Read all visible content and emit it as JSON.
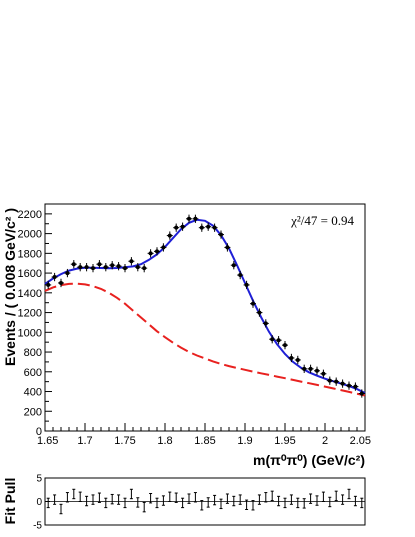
{
  "chart_data": [
    {
      "type": "scatter",
      "title": "",
      "xlabel": "m(π⁰π⁰) (GeV/c²)",
      "ylabel": "Events / ( 0.008 GeV/c² )",
      "xlim": [
        1.65,
        2.05
      ],
      "ylim": [
        0,
        2300
      ],
      "x_ticks": [
        1.65,
        1.7,
        1.75,
        1.8,
        1.85,
        1.9,
        1.95,
        2.0,
        2.05
      ],
      "x_tick_labels": [
        "1.65",
        "1.7",
        "1.75",
        "1.8",
        "1.85",
        "1.9",
        "1.95",
        "2",
        "2.05"
      ],
      "y_ticks": [
        0,
        200,
        400,
        600,
        800,
        1000,
        1200,
        1400,
        1600,
        1800,
        2000,
        2200
      ],
      "y_tick_labels": [
        "0",
        "200",
        "400",
        "600",
        "800",
        "1000",
        "1200",
        "1400",
        "1600",
        "1800",
        "2000",
        "2200"
      ],
      "annotation": "χ²/47 = 0.94",
      "grid": false,
      "series": [
        {
          "name": "",
          "kind": "data-points-with-errors",
          "color": "#000000",
          "x": [
            1.654,
            1.662,
            1.67,
            1.678,
            1.686,
            1.694,
            1.702,
            1.71,
            1.718,
            1.726,
            1.734,
            1.742,
            1.75,
            1.758,
            1.766,
            1.774,
            1.782,
            1.79,
            1.798,
            1.806,
            1.814,
            1.822,
            1.83,
            1.838,
            1.846,
            1.854,
            1.862,
            1.87,
            1.878,
            1.886,
            1.894,
            1.902,
            1.91,
            1.918,
            1.926,
            1.934,
            1.942,
            1.95,
            1.958,
            1.966,
            1.974,
            1.982,
            1.99,
            1.998,
            2.006,
            2.014,
            2.022,
            2.03,
            2.038,
            2.046
          ],
          "y": [
            1480,
            1560,
            1500,
            1600,
            1690,
            1660,
            1660,
            1650,
            1690,
            1660,
            1680,
            1670,
            1650,
            1720,
            1660,
            1650,
            1800,
            1820,
            1860,
            1980,
            2060,
            2070,
            2150,
            2150,
            2060,
            2070,
            2060,
            1990,
            1860,
            1680,
            1580,
            1480,
            1290,
            1200,
            1090,
            930,
            920,
            870,
            740,
            720,
            630,
            630,
            610,
            580,
            510,
            500,
            480,
            460,
            450,
            380
          ],
          "yerr": 42
        },
        {
          "name": "",
          "kind": "fit-total",
          "color": "#1f1fd6",
          "x": [
            1.65,
            1.66,
            1.67,
            1.68,
            1.69,
            1.7,
            1.71,
            1.72,
            1.73,
            1.74,
            1.75,
            1.76,
            1.77,
            1.78,
            1.79,
            1.8,
            1.81,
            1.82,
            1.83,
            1.84,
            1.85,
            1.86,
            1.87,
            1.88,
            1.89,
            1.9,
            1.91,
            1.92,
            1.93,
            1.94,
            1.95,
            1.96,
            1.97,
            1.98,
            1.99,
            2.0,
            2.01,
            2.02,
            2.03,
            2.04,
            2.05
          ],
          "y": [
            1490,
            1545,
            1590,
            1625,
            1645,
            1655,
            1655,
            1652,
            1650,
            1652,
            1660,
            1668,
            1690,
            1735,
            1790,
            1865,
            1955,
            2045,
            2110,
            2140,
            2130,
            2080,
            1985,
            1850,
            1680,
            1500,
            1320,
            1155,
            1005,
            880,
            780,
            700,
            640,
            595,
            560,
            530,
            505,
            480,
            455,
            425,
            385
          ]
        },
        {
          "name": "",
          "kind": "fit-background",
          "color": "#e8211f",
          "x": [
            1.65,
            1.66,
            1.67,
            1.68,
            1.69,
            1.7,
            1.71,
            1.72,
            1.73,
            1.74,
            1.75,
            1.76,
            1.77,
            1.78,
            1.79,
            1.8,
            1.81,
            1.82,
            1.83,
            1.84,
            1.85,
            1.86,
            1.87,
            1.88,
            1.89,
            1.9,
            1.91,
            1.92,
            1.93,
            1.94,
            1.95,
            1.96,
            1.97,
            1.98,
            1.99,
            2.0,
            2.01,
            2.02,
            2.03,
            2.04,
            2.05
          ],
          "y": [
            1420,
            1455,
            1478,
            1490,
            1492,
            1485,
            1468,
            1440,
            1400,
            1350,
            1290,
            1220,
            1150,
            1080,
            1010,
            950,
            895,
            845,
            800,
            765,
            735,
            705,
            680,
            658,
            638,
            620,
            602,
            585,
            568,
            551,
            535,
            518,
            501,
            484,
            467,
            450,
            432,
            414,
            396,
            378,
            360
          ]
        }
      ]
    },
    {
      "type": "scatter",
      "title": "",
      "xlabel": "",
      "ylabel": "Fit Pull",
      "xlim": [
        1.65,
        2.05
      ],
      "ylim": [
        -5,
        5
      ],
      "y_ticks": [
        -5,
        0,
        5
      ],
      "y_tick_labels": [
        "-5",
        "0",
        "5"
      ],
      "grid": false,
      "series": [
        {
          "name": "",
          "kind": "pull-points",
          "color": "#000000",
          "x": [
            1.654,
            1.662,
            1.67,
            1.678,
            1.686,
            1.694,
            1.702,
            1.71,
            1.718,
            1.726,
            1.734,
            1.742,
            1.75,
            1.758,
            1.766,
            1.774,
            1.782,
            1.79,
            1.798,
            1.806,
            1.814,
            1.822,
            1.83,
            1.838,
            1.846,
            1.854,
            1.862,
            1.87,
            1.878,
            1.886,
            1.894,
            1.902,
            1.91,
            1.918,
            1.926,
            1.934,
            1.942,
            1.95,
            1.958,
            1.966,
            1.974,
            1.982,
            1.99,
            1.998,
            2.006,
            2.014,
            2.022,
            2.03,
            2.038,
            2.046
          ],
          "y": [
            -0.3,
            0.4,
            -1.6,
            0.9,
            1.6,
            1.0,
            0.1,
            0.4,
            0.8,
            -0.3,
            0.5,
            0.4,
            -0.3,
            1.6,
            -0.2,
            -1.2,
            0.7,
            -0.3,
            0.2,
            1.0,
            0.8,
            -0.3,
            0.6,
            0.9,
            -0.8,
            -0.2,
            0.3,
            -0.5,
            0.6,
            0.1,
            0.4,
            -0.7,
            -0.8,
            0.4,
            0.9,
            1.2,
            0.1,
            -0.3,
            0.4,
            -0.3,
            -0.4,
            0.6,
            0.2,
            1.0,
            -0.1,
            1.2,
            0.4,
            1.6,
            0.1,
            -0.3
          ],
          "yerr": 1.0
        }
      ]
    }
  ]
}
